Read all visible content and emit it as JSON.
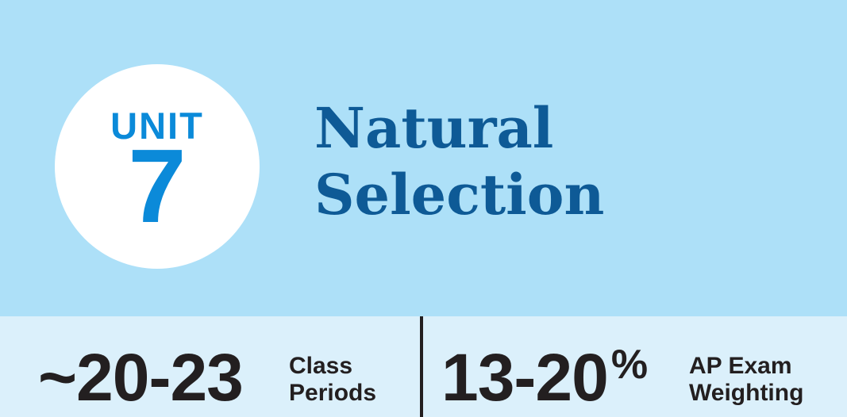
{
  "unit": {
    "label": "UNIT",
    "number": "7"
  },
  "title": {
    "line1": "Natural",
    "line2": "Selection"
  },
  "stats": {
    "class_periods": {
      "value": "~20-23",
      "caption_line1": "Class",
      "caption_line2": "Periods"
    },
    "exam_weighting": {
      "value": "13-20",
      "suffix": "%",
      "caption_line1": "AP Exam",
      "caption_line2": "Weighting"
    }
  },
  "colors": {
    "header_bg": "#ade0f8",
    "footer_bg": "#dbf0fb",
    "unit_blue": "#0b8ad9",
    "title_blue": "#0e5a96",
    "text_dark": "#231f20"
  }
}
